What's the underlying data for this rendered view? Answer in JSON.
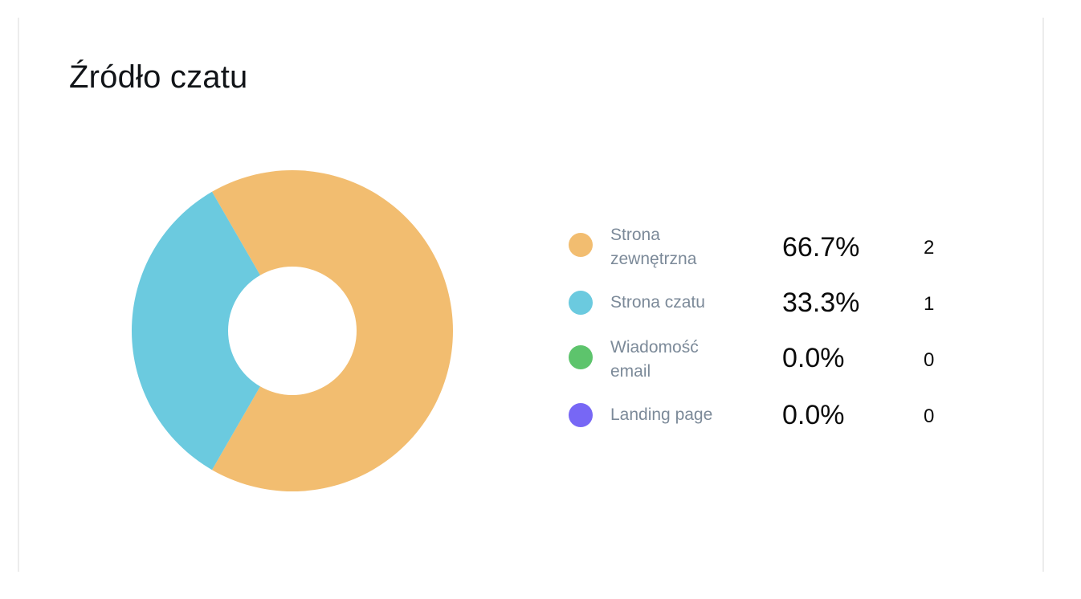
{
  "title": "Źródło czatu",
  "chart_data": {
    "type": "pie",
    "style": "donut",
    "title": "Źródło czatu",
    "legend_position": "right",
    "series": [
      {
        "name": "Strona zewnętrzna",
        "percent_label": "66.7%",
        "count": "2",
        "value": 2,
        "color": "#f2bd70"
      },
      {
        "name": "Strona czatu",
        "percent_label": "33.3%",
        "count": "1",
        "value": 1,
        "color": "#6bcadf"
      },
      {
        "name": "Wiadomość email",
        "percent_label": "0.0%",
        "count": "0",
        "value": 0,
        "color": "#5dc46c"
      },
      {
        "name": "Landing page",
        "percent_label": "0.0%",
        "count": "0",
        "value": 0,
        "color": "#7767f5"
      }
    ]
  }
}
